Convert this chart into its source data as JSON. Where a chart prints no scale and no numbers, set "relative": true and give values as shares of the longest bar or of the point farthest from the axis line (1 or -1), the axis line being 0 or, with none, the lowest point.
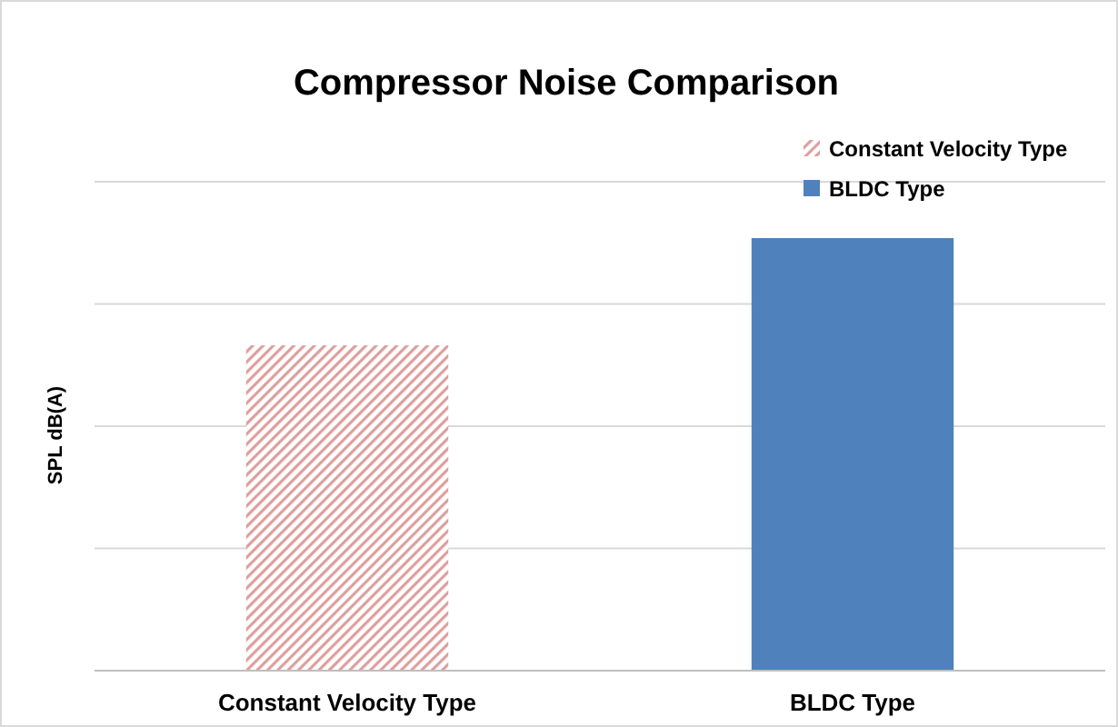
{
  "chart_data": {
    "type": "bar",
    "title": "Compressor Noise Comparison",
    "ylabel": "SPL dB(A)",
    "categories": [
      "Constant Velocity Type",
      "BLDC Type"
    ],
    "relative": true,
    "grid": "y",
    "legend": "top right",
    "series": [
      {
        "name": "Constant Velocity Type",
        "color": "#c0504d",
        "values": [
          0.752,
          null
        ]
      },
      {
        "name": "BLDC Type",
        "color": "#4f81bd",
        "values": [
          null,
          1
        ]
      }
    ]
  }
}
